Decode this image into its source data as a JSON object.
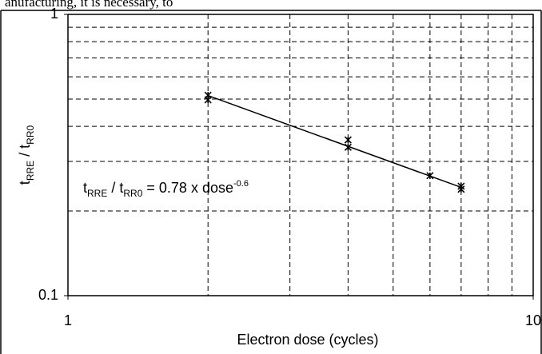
{
  "page_text": "anufacturing, it is necessary, to",
  "chart_data": {
    "type": "scatter",
    "xlabel": "Electron dose (cycles)",
    "ylabel": [
      "t",
      "RRE",
      " / t",
      "RR0"
    ],
    "annotation": [
      "t",
      "RRE",
      " / t",
      "RR0",
      " = 0.78 x dose",
      "-0.6"
    ],
    "x": [
      2,
      2,
      4,
      4,
      6,
      7,
      7
    ],
    "values": [
      0.516,
      0.497,
      0.358,
      0.337,
      0.267,
      0.245,
      0.239
    ],
    "color": "#000000",
    "fit": {
      "coef": 0.78,
      "exp": -0.6
    },
    "xlim": [
      1,
      10
    ],
    "ylim": [
      0.1,
      1
    ],
    "xticks": [
      1,
      10
    ],
    "yticks": [
      0.1,
      1
    ],
    "xminor": [
      2,
      3,
      4,
      5,
      6,
      7,
      8,
      9
    ],
    "yminor": [
      0.2,
      0.3,
      0.4,
      0.5,
      0.6,
      0.7,
      0.8,
      0.9
    ],
    "xlog": true,
    "ylog": true,
    "grid": true
  }
}
